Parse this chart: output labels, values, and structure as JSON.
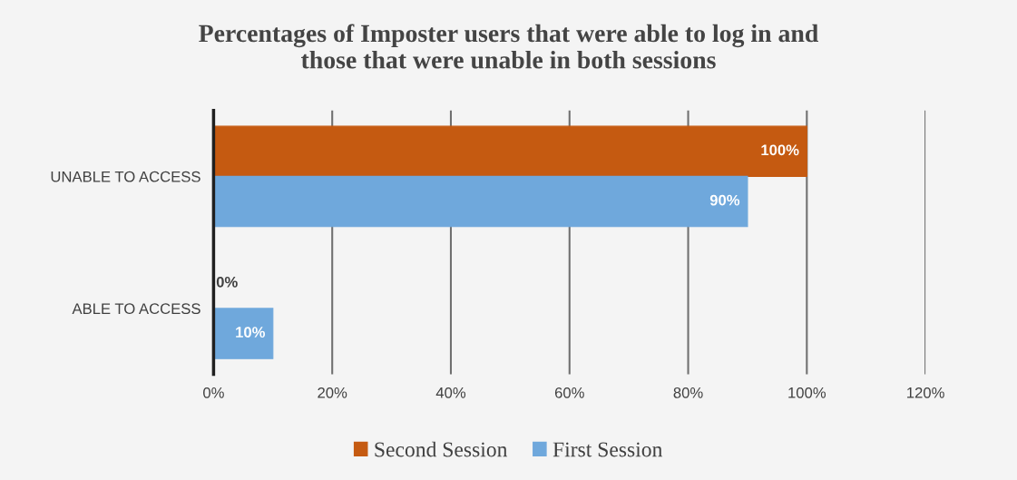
{
  "chart_data": {
    "type": "bar",
    "orientation": "horizontal",
    "title": "Percentages of Imposter users that were able to log in and those that were unable in both sessions",
    "categories": [
      "UNABLE TO ACCESS",
      "ABLE TO ACCESS"
    ],
    "series": [
      {
        "name": "Second Session",
        "color": "#c55a11",
        "values": [
          100,
          0
        ],
        "value_labels": [
          "100%",
          "0%"
        ]
      },
      {
        "name": "First Session",
        "color": "#6fa8dc",
        "values": [
          90,
          10
        ],
        "value_labels": [
          "90%",
          "10%"
        ]
      }
    ],
    "xlim": [
      0,
      120
    ],
    "xticks": [
      {
        "value": 0,
        "label": "0%"
      },
      {
        "value": 20,
        "label": "20%"
      },
      {
        "value": 40,
        "label": "40%"
      },
      {
        "value": 60,
        "label": "60%"
      },
      {
        "value": 80,
        "label": "80%"
      },
      {
        "value": 100,
        "label": "100%"
      },
      {
        "value": 120,
        "label": "120%"
      }
    ],
    "grid": "x",
    "legend": "bottom"
  }
}
